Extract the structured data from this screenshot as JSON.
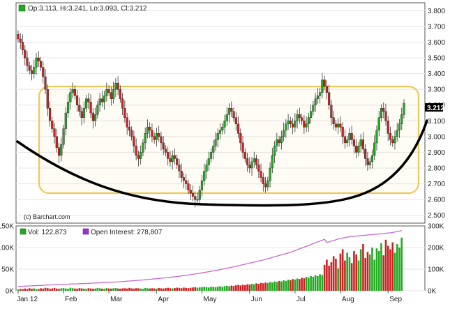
{
  "chart_data": [
    {
      "type": "candlestick",
      "ohlc_header": {
        "text": "Op:3.113, Hi:3.241, Lo:3.093, Cl:3.212",
        "swatch_color": "#22aa22"
      },
      "last_price_label": "3.212",
      "watermark": "(c) Barchart.com",
      "y_ticks": [
        "3.800",
        "3.700",
        "3.600",
        "3.500",
        "3.400",
        "3.300",
        "3.200",
        "3.100",
        "3.000",
        "2.900",
        "2.800",
        "2.700",
        "2.600",
        "2.500"
      ],
      "ylim": [
        2.45,
        3.85
      ],
      "x_ticks": [
        "Jan 12",
        "Feb",
        "Mar",
        "Apr",
        "May",
        "Jun",
        "Jul",
        "Aug",
        "Sep"
      ],
      "colors": {
        "up": "#22aa22",
        "down": "#cc2222",
        "annotation_box": "#f0c85a",
        "cup_curve": "#000000"
      },
      "annotations": [
        "rounded-rectangle trading range",
        "cup (rounding bottom) curve"
      ],
      "closes": [
        3.62,
        3.6,
        3.55,
        3.5,
        3.45,
        3.42,
        3.4,
        3.44,
        3.5,
        3.48,
        3.44,
        3.38,
        3.3,
        3.18,
        3.1,
        3.05,
        3.0,
        2.93,
        2.88,
        2.95,
        3.05,
        3.15,
        3.22,
        3.28,
        3.3,
        3.26,
        3.2,
        3.16,
        3.12,
        3.18,
        3.24,
        3.22,
        3.15,
        3.1,
        3.14,
        3.2,
        3.24,
        3.22,
        3.26,
        3.3,
        3.28,
        3.24,
        3.3,
        3.34,
        3.3,
        3.24,
        3.18,
        3.12,
        3.06,
        3.04,
        3.0,
        2.94,
        2.88,
        2.86,
        2.9,
        2.96,
        3.02,
        3.06,
        3.04,
        3.0,
        2.98,
        3.02,
        3.0,
        2.96,
        2.92,
        2.9,
        2.86,
        2.84,
        2.88,
        2.86,
        2.82,
        2.78,
        2.74,
        2.72,
        2.7,
        2.66,
        2.64,
        2.62,
        2.6,
        2.6,
        2.66,
        2.72,
        2.78,
        2.82,
        2.86,
        2.9,
        2.94,
        2.98,
        3.02,
        3.04,
        3.06,
        3.1,
        3.14,
        3.18,
        3.16,
        3.12,
        3.08,
        3.02,
        2.96,
        2.9,
        2.86,
        2.82,
        2.8,
        2.84,
        2.86,
        2.82,
        2.78,
        2.74,
        2.7,
        2.68,
        2.72,
        2.8,
        2.88,
        2.94,
        2.98,
        2.96,
        3.0,
        3.04,
        3.08,
        3.1,
        3.08,
        3.06,
        3.1,
        3.14,
        3.12,
        3.1,
        3.06,
        3.08,
        3.12,
        3.16,
        3.2,
        3.24,
        3.26,
        3.28,
        3.36,
        3.32,
        3.28,
        3.2,
        3.12,
        3.08,
        3.06,
        3.08,
        3.06,
        3.0,
        2.96,
        2.98,
        3.02,
        2.98,
        2.94,
        2.9,
        2.94,
        2.98,
        2.92,
        2.86,
        2.82,
        2.84,
        2.88,
        2.96,
        3.04,
        3.12,
        3.18,
        3.16,
        3.1,
        3.02,
        2.98,
        2.96,
        3.0,
        3.04,
        3.08,
        3.14,
        3.212
      ]
    },
    {
      "type": "bar",
      "legend": [
        {
          "label": "Vol: 122,873",
          "color": "#22aa22"
        },
        {
          "label": "Open Interest: 278,807",
          "color": "#9933cc"
        }
      ],
      "y_left_ticks": [
        "150K",
        "100K",
        "50K",
        "0K"
      ],
      "y_right_ticks": [
        "300K",
        "200K",
        "100K",
        "0K"
      ],
      "ylim_left": [
        0,
        150000
      ],
      "ylim_right": [
        0,
        300000
      ],
      "colors": {
        "up": "#22aa22",
        "down": "#cc2222",
        "open_interest": "#cc66cc"
      },
      "volume": [
        3000,
        4500,
        3800,
        5200,
        4000,
        6000,
        4800,
        5500,
        3600,
        4200,
        5800,
        5000,
        7000,
        6200,
        4800,
        5400,
        6600,
        5000,
        4400,
        5800,
        6400,
        5200,
        4600,
        7000,
        6000,
        5200,
        4800,
        6200,
        5600,
        5000,
        4400,
        6000,
        5400,
        4800,
        5200,
        6600,
        5800,
        5000,
        4600,
        6200,
        5400,
        5000,
        5800,
        6400,
        5200,
        4800,
        5600,
        6000,
        5200,
        6800,
        5600,
        5000,
        6200,
        5800,
        5000,
        4600,
        6400,
        5800,
        5200,
        6000,
        5400,
        5000,
        6600,
        5800,
        5200,
        6200,
        7000,
        6000,
        5400,
        6400,
        7200,
        6800,
        6000,
        7400,
        6800,
        6200,
        7000,
        7600,
        8200,
        7200,
        7800,
        8400,
        9000,
        8200,
        7600,
        9400,
        8800,
        8200,
        9600,
        10400,
        9200,
        10800,
        11600,
        10400,
        12000,
        11000,
        12800,
        13600,
        12400,
        14200,
        13000,
        15000,
        14200,
        16000,
        15200,
        17200,
        16000,
        18400,
        17400,
        19000,
        18000,
        20400,
        19200,
        21600,
        20400,
        22800,
        21600,
        24200,
        22800,
        25600,
        24400,
        27000,
        26000,
        28400,
        27200,
        30000,
        28800,
        32000,
        30400,
        34000,
        32400,
        36000,
        34200,
        38000,
        36400,
        60000,
        72000,
        58000,
        66000,
        80000,
        74000,
        52000,
        86000,
        96000,
        70000,
        88000,
        78000,
        64000,
        92000,
        84000,
        70000,
        96000,
        108000,
        76000,
        90000,
        84000,
        100000,
        72000,
        98000,
        92000,
        110000,
        82000,
        118000,
        104000,
        96000,
        112000,
        88000,
        108000,
        100000,
        122873
      ],
      "open_interest": [
        20000,
        20500,
        21000,
        21500,
        22000,
        22500,
        23000,
        23500,
        24000,
        24500,
        25000,
        25500,
        26000,
        26500,
        27000,
        27500,
        28000,
        28500,
        29000,
        29500,
        30000,
        30400,
        30800,
        31200,
        31600,
        32000,
        32400,
        32800,
        33200,
        33600,
        34000,
        34500,
        35000,
        35500,
        36000,
        36500,
        37000,
        37500,
        38000,
        38500,
        39000,
        39600,
        40200,
        40800,
        41400,
        42000,
        42800,
        43600,
        44400,
        45200,
        46000,
        46800,
        47600,
        48400,
        49200,
        50000,
        51000,
        52000,
        53000,
        54000,
        55000,
        56000,
        57000,
        58000,
        59000,
        60000,
        61200,
        62400,
        63600,
        64800,
        66000,
        67400,
        68800,
        70200,
        71600,
        73000,
        74600,
        76200,
        77800,
        79400,
        81000,
        82800,
        84600,
        86400,
        88200,
        90000,
        92000,
        94000,
        96000,
        98000,
        100000,
        102200,
        104400,
        106600,
        108800,
        111000,
        113400,
        115800,
        118200,
        120600,
        123000,
        125400,
        127800,
        130200,
        132600,
        135000,
        137600,
        140200,
        142800,
        145400,
        148000,
        151000,
        154000,
        157000,
        160000,
        163000,
        166000,
        169000,
        172000,
        175000,
        178000,
        182000,
        186000,
        190000,
        194000,
        198000,
        202000,
        206000,
        210000,
        214000,
        218000,
        222000,
        226000,
        230000,
        234000,
        238000,
        224000,
        226000,
        230000,
        232000,
        236000,
        240000,
        242000,
        244000,
        246000,
        248000,
        250000,
        251000,
        252000,
        253000,
        254000,
        255000,
        256000,
        257000,
        258000,
        259000,
        260000,
        261000,
        262000,
        263000,
        264000,
        265000,
        266000,
        267000,
        268000,
        270000,
        272000,
        274000,
        276000,
        278807
      ]
    }
  ]
}
